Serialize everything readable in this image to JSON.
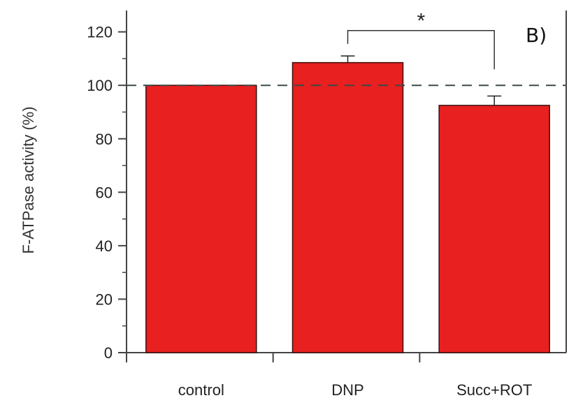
{
  "chart_data": {
    "type": "bar",
    "panel_label": "B)",
    "categories": [
      "control",
      "DNP",
      "Succ+ROT"
    ],
    "values": [
      100,
      108.5,
      92.5
    ],
    "errors": [
      0,
      2.5,
      3.5
    ],
    "ylabel": "F-ATPase activity (%)",
    "xlabel": "",
    "ylim": [
      0,
      128
    ],
    "yticks": [
      0,
      20,
      40,
      60,
      80,
      100,
      120
    ],
    "reference_line": 100,
    "significance": {
      "from": 1,
      "to": 2,
      "label": "*"
    },
    "bar_color": "#e8201f",
    "bar_edge_color": "#3a1010"
  }
}
